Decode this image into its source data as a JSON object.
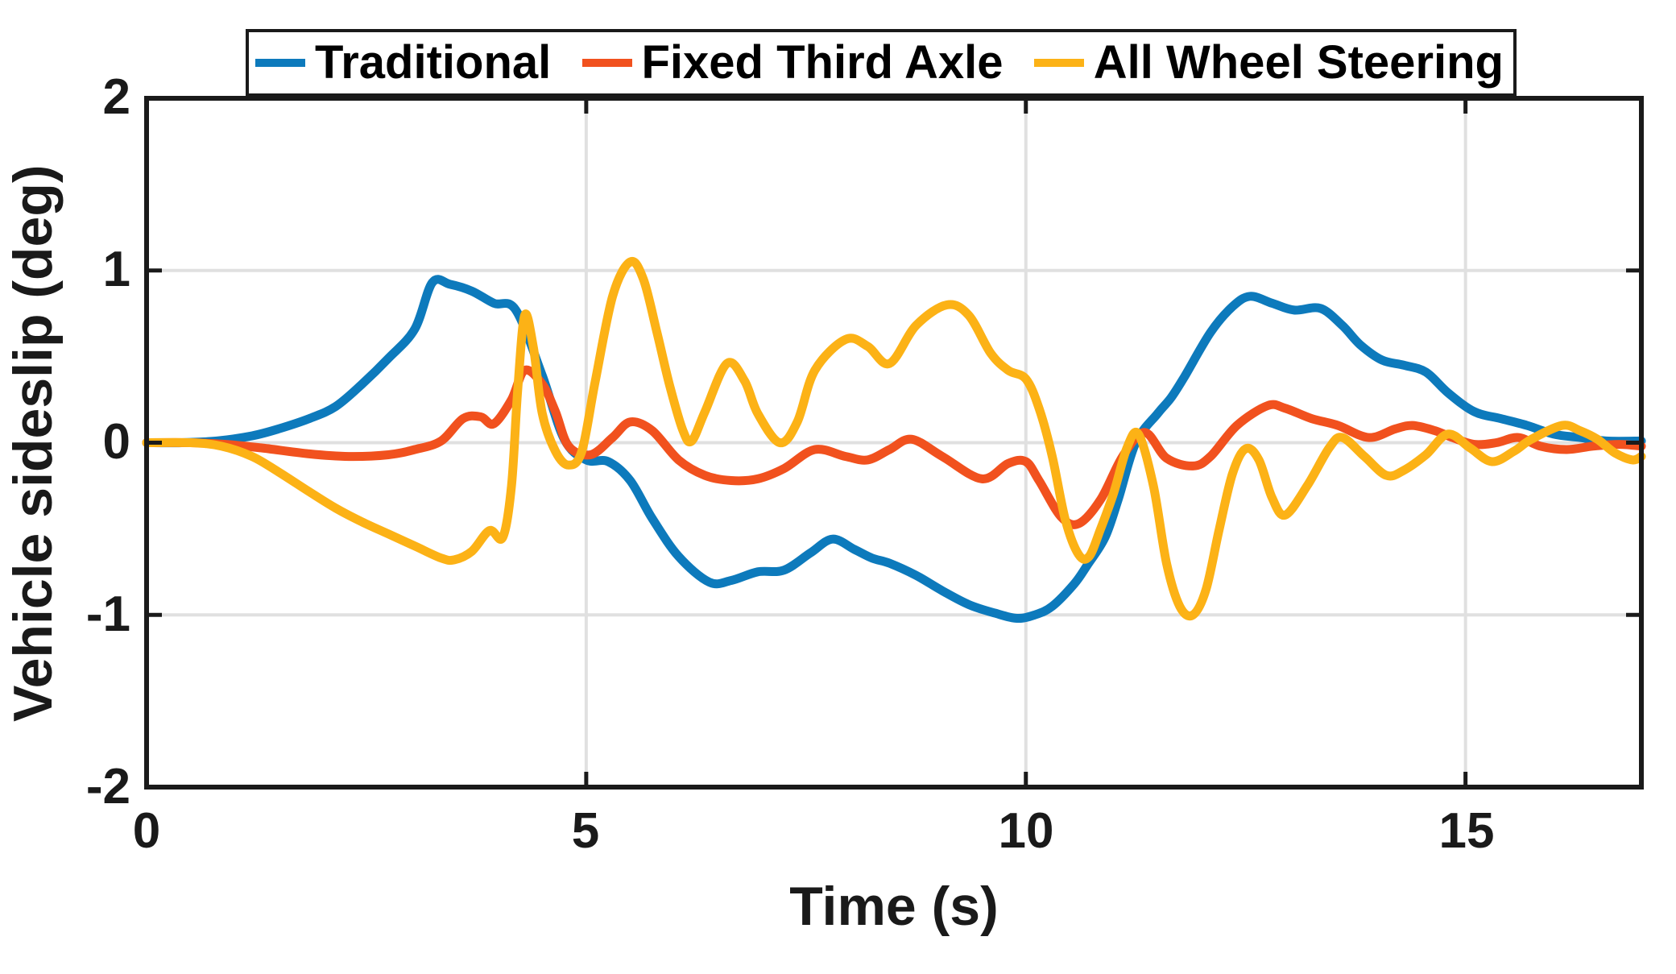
{
  "figure": {
    "background": "#ffffff",
    "axis_color": "#1a1a1a",
    "grid_color": "#e0e0e0",
    "text_color": "#1a1a1a"
  },
  "chart_data": {
    "type": "line",
    "title": "",
    "xlabel": "Time (s)",
    "ylabel": "Vehicle sideslip (deg)",
    "xlim": [
      0,
      17
    ],
    "ylim": [
      -2,
      2
    ],
    "xticks": [
      0,
      5,
      10,
      15
    ],
    "yticks": [
      2,
      1,
      0,
      -1,
      -2
    ],
    "xtick_labels": [
      "0",
      "5",
      "10",
      "15"
    ],
    "ytick_labels": [
      "2",
      "1",
      "0",
      "-1",
      "-2"
    ],
    "grid": true,
    "legend_position": "top",
    "line_width": 11,
    "series": [
      {
        "name": "Traditional",
        "color": "#0d7abc",
        "points": [
          [
            0,
            0
          ],
          [
            0.4,
            0
          ],
          [
            0.8,
            0.01
          ],
          [
            1.2,
            0.04
          ],
          [
            1.5,
            0.08
          ],
          [
            1.85,
            0.14
          ],
          [
            2.15,
            0.21
          ],
          [
            2.45,
            0.34
          ],
          [
            2.75,
            0.49
          ],
          [
            3.05,
            0.66
          ],
          [
            3.25,
            0.93
          ],
          [
            3.45,
            0.92
          ],
          [
            3.7,
            0.88
          ],
          [
            3.95,
            0.81
          ],
          [
            4.2,
            0.77
          ],
          [
            4.5,
            0.39
          ],
          [
            4.75,
            0.02
          ],
          [
            5.0,
            -0.1
          ],
          [
            5.25,
            -0.11
          ],
          [
            5.5,
            -0.22
          ],
          [
            5.75,
            -0.44
          ],
          [
            6.05,
            -0.66
          ],
          [
            6.4,
            -0.81
          ],
          [
            6.65,
            -0.8
          ],
          [
            6.95,
            -0.75
          ],
          [
            7.25,
            -0.74
          ],
          [
            7.55,
            -0.64
          ],
          [
            7.8,
            -0.56
          ],
          [
            8.05,
            -0.62
          ],
          [
            8.25,
            -0.67
          ],
          [
            8.45,
            -0.7
          ],
          [
            8.75,
            -0.77
          ],
          [
            9.05,
            -0.86
          ],
          [
            9.35,
            -0.94
          ],
          [
            9.65,
            -0.99
          ],
          [
            9.9,
            -1.02
          ],
          [
            10.1,
            -1.0
          ],
          [
            10.3,
            -0.95
          ],
          [
            10.55,
            -0.82
          ],
          [
            10.7,
            -0.71
          ],
          [
            10.9,
            -0.55
          ],
          [
            11.05,
            -0.33
          ],
          [
            11.25,
            0.0
          ],
          [
            11.5,
            0.17
          ],
          [
            11.65,
            0.26
          ],
          [
            11.8,
            0.38
          ],
          [
            12.1,
            0.64
          ],
          [
            12.35,
            0.79
          ],
          [
            12.55,
            0.85
          ],
          [
            12.8,
            0.81
          ],
          [
            13.05,
            0.77
          ],
          [
            13.35,
            0.78
          ],
          [
            13.6,
            0.68
          ],
          [
            13.8,
            0.57
          ],
          [
            14.05,
            0.48
          ],
          [
            14.3,
            0.45
          ],
          [
            14.55,
            0.41
          ],
          [
            14.8,
            0.29
          ],
          [
            15.1,
            0.18
          ],
          [
            15.4,
            0.14
          ],
          [
            15.7,
            0.1
          ],
          [
            16.0,
            0.05
          ],
          [
            16.3,
            0.03
          ],
          [
            16.6,
            0.01
          ],
          [
            17,
            0.01
          ]
        ]
      },
      {
        "name": "Fixed Third Axle",
        "color": "#f1511e",
        "points": [
          [
            0,
            0
          ],
          [
            0.5,
            0
          ],
          [
            0.9,
            -0.01
          ],
          [
            1.3,
            -0.03
          ],
          [
            1.85,
            -0.065
          ],
          [
            2.3,
            -0.08
          ],
          [
            2.75,
            -0.07
          ],
          [
            3.05,
            -0.04
          ],
          [
            3.35,
            0.01
          ],
          [
            3.6,
            0.14
          ],
          [
            3.8,
            0.15
          ],
          [
            3.95,
            0.11
          ],
          [
            4.15,
            0.25
          ],
          [
            4.3,
            0.42
          ],
          [
            4.5,
            0.34
          ],
          [
            4.65,
            0.18
          ],
          [
            4.8,
            -0.02
          ],
          [
            5.05,
            -0.07
          ],
          [
            5.3,
            0.03
          ],
          [
            5.5,
            0.12
          ],
          [
            5.75,
            0.07
          ],
          [
            6.05,
            -0.1
          ],
          [
            6.35,
            -0.19
          ],
          [
            6.65,
            -0.22
          ],
          [
            6.95,
            -0.21
          ],
          [
            7.25,
            -0.15
          ],
          [
            7.6,
            -0.04
          ],
          [
            7.95,
            -0.08
          ],
          [
            8.2,
            -0.1
          ],
          [
            8.45,
            -0.04
          ],
          [
            8.7,
            0.02
          ],
          [
            9.05,
            -0.08
          ],
          [
            9.5,
            -0.21
          ],
          [
            9.8,
            -0.12
          ],
          [
            10.0,
            -0.11
          ],
          [
            10.15,
            -0.22
          ],
          [
            10.4,
            -0.43
          ],
          [
            10.6,
            -0.47
          ],
          [
            10.85,
            -0.33
          ],
          [
            11.1,
            -0.08
          ],
          [
            11.35,
            0.06
          ],
          [
            11.6,
            -0.09
          ],
          [
            11.9,
            -0.135
          ],
          [
            12.1,
            -0.08
          ],
          [
            12.4,
            0.1
          ],
          [
            12.75,
            0.215
          ],
          [
            12.95,
            0.2
          ],
          [
            13.25,
            0.14
          ],
          [
            13.55,
            0.1
          ],
          [
            13.9,
            0.03
          ],
          [
            14.2,
            0.08
          ],
          [
            14.4,
            0.1
          ],
          [
            14.65,
            0.07
          ],
          [
            14.85,
            0.03
          ],
          [
            15.1,
            -0.01
          ],
          [
            15.35,
            0.0
          ],
          [
            15.6,
            0.03
          ],
          [
            15.85,
            -0.02
          ],
          [
            16.15,
            -0.04
          ],
          [
            16.45,
            -0.02
          ],
          [
            16.75,
            -0.01
          ],
          [
            17,
            -0.02
          ]
        ]
      },
      {
        "name": "All Wheel Steering",
        "color": "#fcb216",
        "points": [
          [
            0,
            0
          ],
          [
            0.5,
            0
          ],
          [
            0.85,
            -0.02
          ],
          [
            1.2,
            -0.08
          ],
          [
            1.5,
            -0.17
          ],
          [
            1.85,
            -0.285
          ],
          [
            2.15,
            -0.38
          ],
          [
            2.45,
            -0.46
          ],
          [
            2.75,
            -0.53
          ],
          [
            3.05,
            -0.6
          ],
          [
            3.35,
            -0.67
          ],
          [
            3.5,
            -0.68
          ],
          [
            3.7,
            -0.63
          ],
          [
            3.9,
            -0.51
          ],
          [
            4.05,
            -0.55
          ],
          [
            4.15,
            -0.25
          ],
          [
            4.22,
            0.3
          ],
          [
            4.3,
            0.74
          ],
          [
            4.4,
            0.55
          ],
          [
            4.5,
            0.17
          ],
          [
            4.65,
            -0.05
          ],
          [
            4.8,
            -0.13
          ],
          [
            4.95,
            -0.05
          ],
          [
            5.1,
            0.35
          ],
          [
            5.3,
            0.85
          ],
          [
            5.5,
            1.05
          ],
          [
            5.65,
            0.95
          ],
          [
            5.8,
            0.65
          ],
          [
            5.95,
            0.33
          ],
          [
            6.1,
            0.07
          ],
          [
            6.2,
            0.01
          ],
          [
            6.35,
            0.18
          ],
          [
            6.6,
            0.46
          ],
          [
            6.8,
            0.36
          ],
          [
            6.95,
            0.17
          ],
          [
            7.2,
            0.0
          ],
          [
            7.4,
            0.12
          ],
          [
            7.6,
            0.42
          ],
          [
            7.95,
            0.6
          ],
          [
            8.2,
            0.56
          ],
          [
            8.45,
            0.46
          ],
          [
            8.75,
            0.68
          ],
          [
            9.1,
            0.8
          ],
          [
            9.35,
            0.74
          ],
          [
            9.6,
            0.52
          ],
          [
            9.8,
            0.42
          ],
          [
            10.0,
            0.37
          ],
          [
            10.15,
            0.2
          ],
          [
            10.3,
            -0.08
          ],
          [
            10.45,
            -0.45
          ],
          [
            10.6,
            -0.65
          ],
          [
            10.72,
            -0.66
          ],
          [
            10.85,
            -0.5
          ],
          [
            11.0,
            -0.29
          ],
          [
            11.15,
            -0.03
          ],
          [
            11.28,
            0.05
          ],
          [
            11.45,
            -0.25
          ],
          [
            11.6,
            -0.7
          ],
          [
            11.75,
            -0.95
          ],
          [
            11.9,
            -1.0
          ],
          [
            12.05,
            -0.85
          ],
          [
            12.2,
            -0.5
          ],
          [
            12.35,
            -0.18
          ],
          [
            12.5,
            -0.035
          ],
          [
            12.65,
            -0.1
          ],
          [
            12.8,
            -0.32
          ],
          [
            12.95,
            -0.42
          ],
          [
            13.2,
            -0.25
          ],
          [
            13.45,
            -0.03
          ],
          [
            13.6,
            0.03
          ],
          [
            13.85,
            -0.08
          ],
          [
            14.1,
            -0.19
          ],
          [
            14.3,
            -0.16
          ],
          [
            14.55,
            -0.07
          ],
          [
            14.8,
            0.05
          ],
          [
            15.05,
            -0.03
          ],
          [
            15.3,
            -0.11
          ],
          [
            15.55,
            -0.05
          ],
          [
            15.75,
            0.02
          ],
          [
            16.1,
            0.1
          ],
          [
            16.3,
            0.07
          ],
          [
            16.5,
            0.02
          ],
          [
            16.7,
            -0.06
          ],
          [
            16.9,
            -0.1
          ],
          [
            17,
            -0.08
          ]
        ]
      }
    ]
  }
}
